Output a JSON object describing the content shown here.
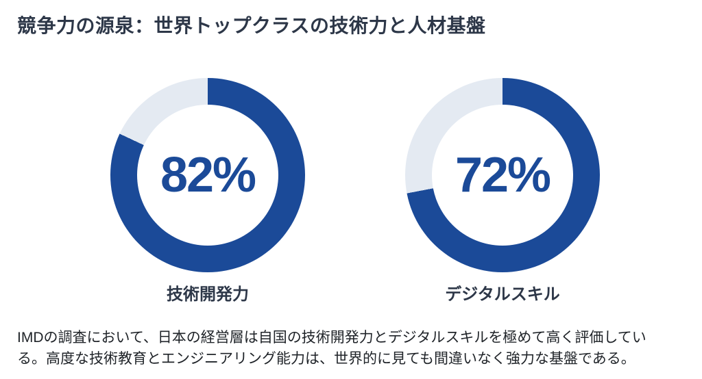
{
  "title": "競争力の源泉：世界トップクラスの技術力と人材基盤",
  "chart_data": {
    "type": "pie",
    "variant": "donut",
    "title": "",
    "legend": "none",
    "start_angle_deg": 0,
    "direction": "clockwise",
    "fill_color": "#1b4a98",
    "track_color": "#e4eaf2",
    "items": [
      {
        "label": "技術開発力",
        "value": 82,
        "value_label": "82%"
      },
      {
        "label": "デジタルスキル",
        "value": 72,
        "value_label": "72%"
      }
    ]
  },
  "body_text": "IMDの調査において、日本の経営層は自国の技術開発力とデジタルスキルを極めて高く評価している。高度な技術教育とエンジニアリング能力は、世界的に見ても間違いなく強力な基盤である。",
  "colors": {
    "title_text": "#2d3748",
    "label_text": "#2d3748",
    "body_text_color": "#1f2328",
    "background": "#ffffff",
    "accent_blue": "#1b4a98",
    "track_gray": "#e4eaf2"
  }
}
